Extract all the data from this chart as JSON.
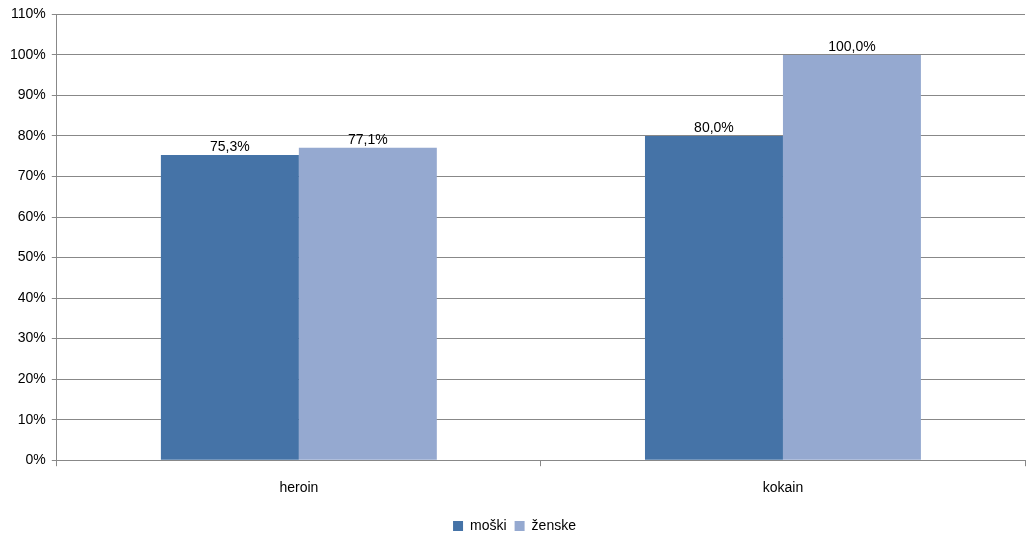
{
  "chart_data": {
    "type": "bar",
    "categories": [
      "heroin",
      "kokain"
    ],
    "series": [
      {
        "name": "moški",
        "color": "#4573a7",
        "values": [
          75.3,
          80.0
        ],
        "value_labels": [
          "75,3%",
          "80,0%"
        ]
      },
      {
        "name": "ženske",
        "color": "#95a9d0",
        "values": [
          77.1,
          100.0
        ],
        "value_labels": [
          "77,1%",
          "100,0%"
        ]
      }
    ],
    "ylim": [
      0,
      110
    ],
    "yticks": [
      {
        "value": 0,
        "label": "0%"
      },
      {
        "value": 10,
        "label": "10%"
      },
      {
        "value": 20,
        "label": "20%"
      },
      {
        "value": 30,
        "label": "30%"
      },
      {
        "value": 40,
        "label": "40%"
      },
      {
        "value": 50,
        "label": "50%"
      },
      {
        "value": 60,
        "label": "60%"
      },
      {
        "value": 70,
        "label": "70%"
      },
      {
        "value": 80,
        "label": "80%"
      },
      {
        "value": 90,
        "label": "90%"
      },
      {
        "value": 100,
        "label": "100%"
      },
      {
        "value": 110,
        "label": "110%"
      }
    ],
    "grid": "y",
    "legend": "bottom"
  }
}
